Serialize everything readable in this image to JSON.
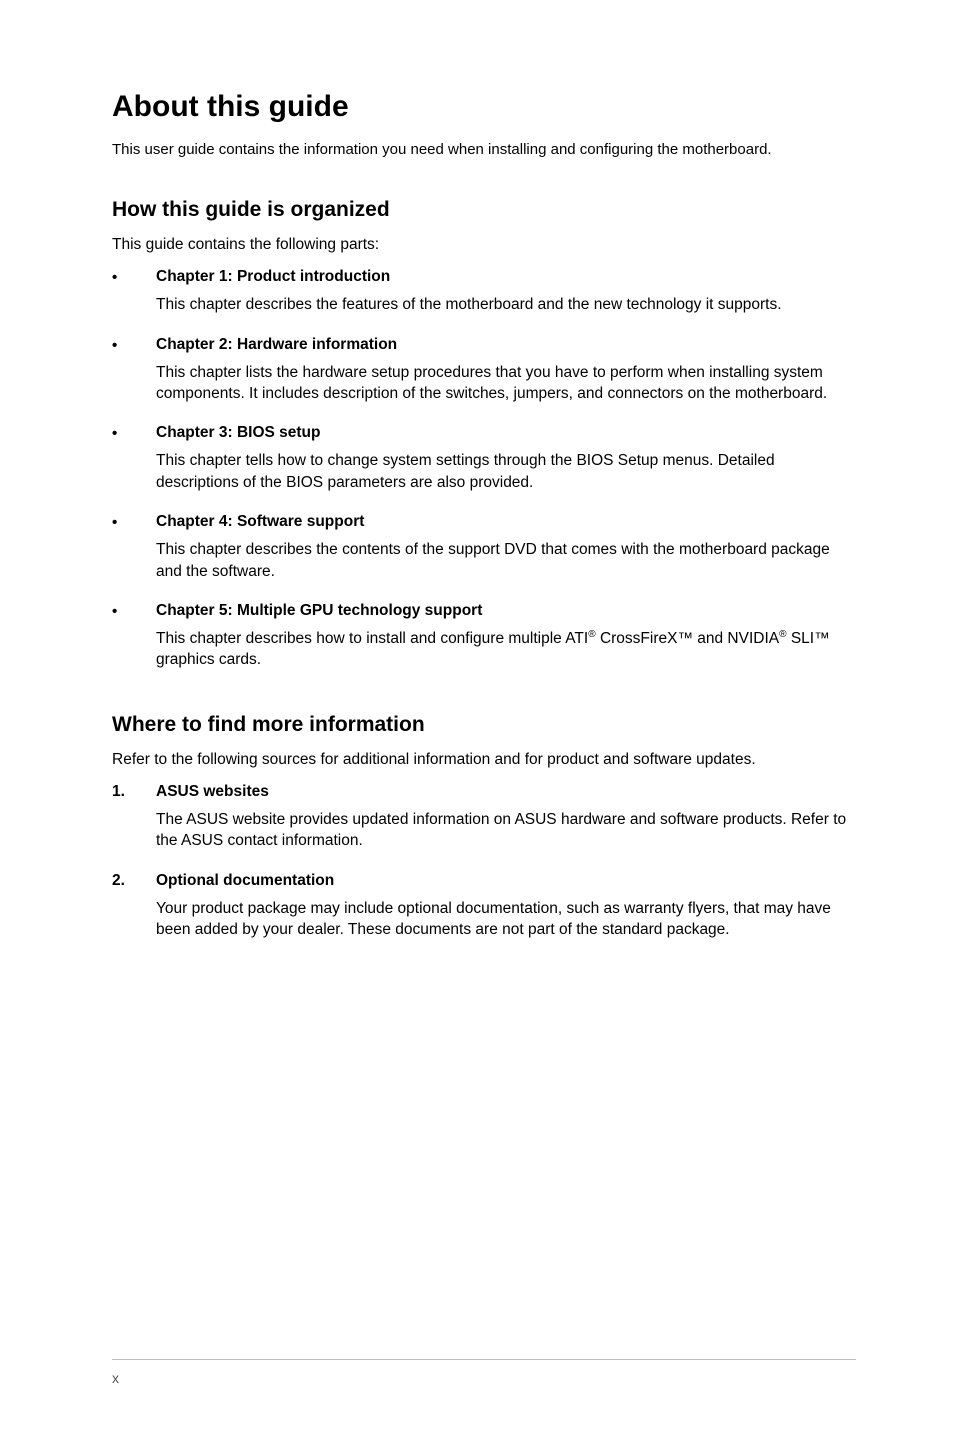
{
  "title": "About this guide",
  "intro": "This user guide contains the information you need when installing and configuring the motherboard.",
  "section1": {
    "heading": "How this guide is organized",
    "lead": "This guide contains the following parts:",
    "items": [
      {
        "marker": "•",
        "title": "Chapter 1: Product introduction",
        "body": "This chapter describes the features of the motherboard and the new technology it supports."
      },
      {
        "marker": "•",
        "title": "Chapter 2: Hardware information",
        "body": "This chapter lists the hardware setup procedures that you have to perform when installing system components. It includes description of the switches, jumpers, and connectors on the motherboard."
      },
      {
        "marker": "•",
        "title": "Chapter 3: BIOS setup",
        "body": "This chapter tells how to change system settings through the BIOS Setup menus. Detailed descriptions of the BIOS parameters are also provided."
      },
      {
        "marker": "•",
        "title": "Chapter 4: Software support",
        "body": "This chapter describes the contents of the support DVD that comes with the motherboard package and the software."
      },
      {
        "marker": "•",
        "title": "Chapter 5: Multiple GPU technology support",
        "body_pre": "This chapter describes how to install and configure multiple ATI",
        "body_mid": " CrossFireX™ and NVIDIA",
        "body_post": " SLI™ graphics cards."
      }
    ]
  },
  "section2": {
    "heading": "Where to find more information",
    "lead": "Refer to the following sources for additional information and for product and software updates.",
    "items": [
      {
        "num": "1.",
        "title": "ASUS websites",
        "body": "The ASUS website provides updated information on ASUS hardware and software products. Refer to the ASUS contact information."
      },
      {
        "num": "2.",
        "title": "Optional documentation",
        "body": "Your product package may include optional documentation, such as warranty flyers, that may have been added by your dealer. These documents are not part of the standard package."
      }
    ]
  },
  "reg_mark": "®",
  "page_number": "x",
  "colors": {
    "text": "#000000",
    "bg": "#ffffff",
    "rule": "#bdbdbd",
    "footer_text": "#555555"
  },
  "fonts": {
    "title_size_pt": 22,
    "section_size_pt": 16,
    "body_size_pt": 11.5
  }
}
